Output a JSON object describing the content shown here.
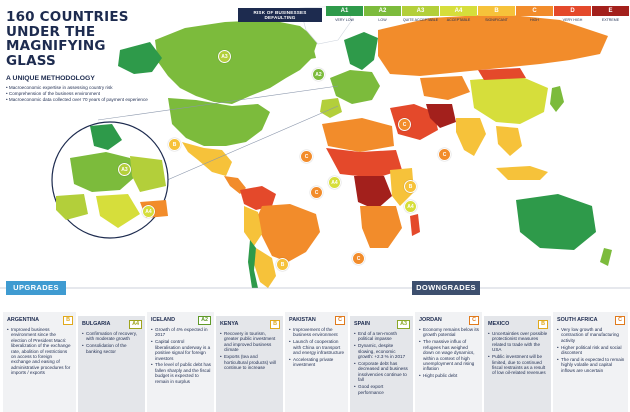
{
  "title": "160 COUNTRIES UNDER THE MAGNIFYING GLASS",
  "subtitle": "A UNIQUE METHODOLOGY",
  "bullets": [
    "Macroeconomic expertise in assessing country risk",
    "Comprehension of the business environment",
    "Macroeconomic data collected over 70 years of payment experience"
  ],
  "legend": {
    "title": "RISK OF BUSINESSES DEFAULTING",
    "items": [
      {
        "grade": "A1",
        "label": "VERY LOW",
        "color": "#2e9a4a"
      },
      {
        "grade": "A2",
        "label": "LOW",
        "color": "#7cbb3c"
      },
      {
        "grade": "A3",
        "label": "QUITE ACCEPTABLE",
        "color": "#b3cf3a"
      },
      {
        "grade": "A4",
        "label": "ACCEPTABLE",
        "color": "#d6de3b"
      },
      {
        "grade": "B",
        "label": "SIGNIFICANT",
        "color": "#f6c23a"
      },
      {
        "grade": "C",
        "label": "HIGH",
        "color": "#f28c2b"
      },
      {
        "grade": "D",
        "label": "VERY HIGH",
        "color": "#e4492b"
      },
      {
        "grade": "E",
        "label": "EXTREME",
        "color": "#a3201c"
      }
    ]
  },
  "map_badges": [
    {
      "grade": "A3",
      "color": "#b3cf3a"
    },
    {
      "grade": "A2",
      "color": "#7cbb3c"
    },
    {
      "grade": "A3",
      "color": "#b3cf3a"
    },
    {
      "grade": "A4",
      "color": "#d6de3b"
    },
    {
      "grade": "C",
      "color": "#f28c2b"
    },
    {
      "grade": "C",
      "color": "#f28c2b"
    },
    {
      "grade": "A4",
      "color": "#d6de3b"
    },
    {
      "grade": "B",
      "color": "#f6c23a"
    },
    {
      "grade": "C",
      "color": "#f28c2b"
    },
    {
      "grade": "B",
      "color": "#f6c23a"
    },
    {
      "grade": "C",
      "color": "#f28c2b"
    },
    {
      "grade": "A4",
      "color": "#d6de3b"
    },
    {
      "grade": "B",
      "color": "#f6c23a"
    },
    {
      "grade": "C",
      "color": "#f28c2b"
    }
  ],
  "upgrades_label": "UPGRADES",
  "downgrades_label": "DOWNGRADES",
  "cards": [
    {
      "country": "ARGENTINA",
      "grade": "B",
      "grade_color": "#f6c23a",
      "points": [
        "Improved business environment since the election of President Macri: liberalization of the exchange rate, abolition of restrictions on access to foreign exchange and easing of administrative procedures for imports / exports"
      ]
    },
    {
      "country": "BULGARIA",
      "grade": "A4",
      "grade_color": "#c9cf2b",
      "points": [
        "Confirmation of recovery, with moderate growth",
        "Consolidation of the banking sector"
      ]
    },
    {
      "country": "ICELAND",
      "grade": "A2",
      "grade_color": "#7cbb3c",
      "points": [
        "Growth of 4% expected in 2017",
        "Capital control liberalisation underway is a positive signal for foreign investors",
        "The level of public debt has fallen sharply and the fiscal budget is expected to remain in surplus"
      ]
    },
    {
      "country": "KENYA",
      "grade": "B",
      "grade_color": "#f6c23a",
      "points": [
        "Recovery in tourism, greater public investment and improved business climate",
        "Exports (tea and horticultural products) will continue to increase"
      ]
    },
    {
      "country": "PAKISTAN",
      "grade": "C",
      "grade_color": "#f28c2b",
      "points": [
        "Improvement of the business environment",
        "Launch of cooperation with China on transport and energy infrastructure",
        "Accelerating private investment"
      ]
    },
    {
      "country": "SPAIN",
      "grade": "A3",
      "grade_color": "#a9c634",
      "points": [
        "End of a ten-month political impasse",
        "Dynamic, despite slowing, economic growth: +2.3 % in 2017",
        "Corporate debt has decreased and business insolvencies continue to fall",
        "Good export performance"
      ]
    },
    {
      "country": "JORDAN",
      "grade": "C",
      "grade_color": "#f28c2b",
      "points": [
        "Economy remains below its growth potential",
        "The massive influx of refugees has weighed down on wage dynamics, within a context of high unemployment and rising inflation",
        "Hight public debt"
      ]
    },
    {
      "country": "MEXICO",
      "grade": "B",
      "grade_color": "#f6c23a",
      "points": [
        "Uncertainties over possible protectionist measures related to trade with the USA",
        "Public investment will be limited, due to continued fiscal restraints as a result of low oil-related revenues"
      ]
    },
    {
      "country": "SOUTH AFRICA",
      "grade": "C",
      "grade_color": "#f28c2b",
      "points": [
        "Very low growth and contraction of manufacturing activity",
        "Higher political risk and social discontent",
        "The rand is expected to remain highly volatile and capital inflows are uncertain"
      ]
    }
  ]
}
